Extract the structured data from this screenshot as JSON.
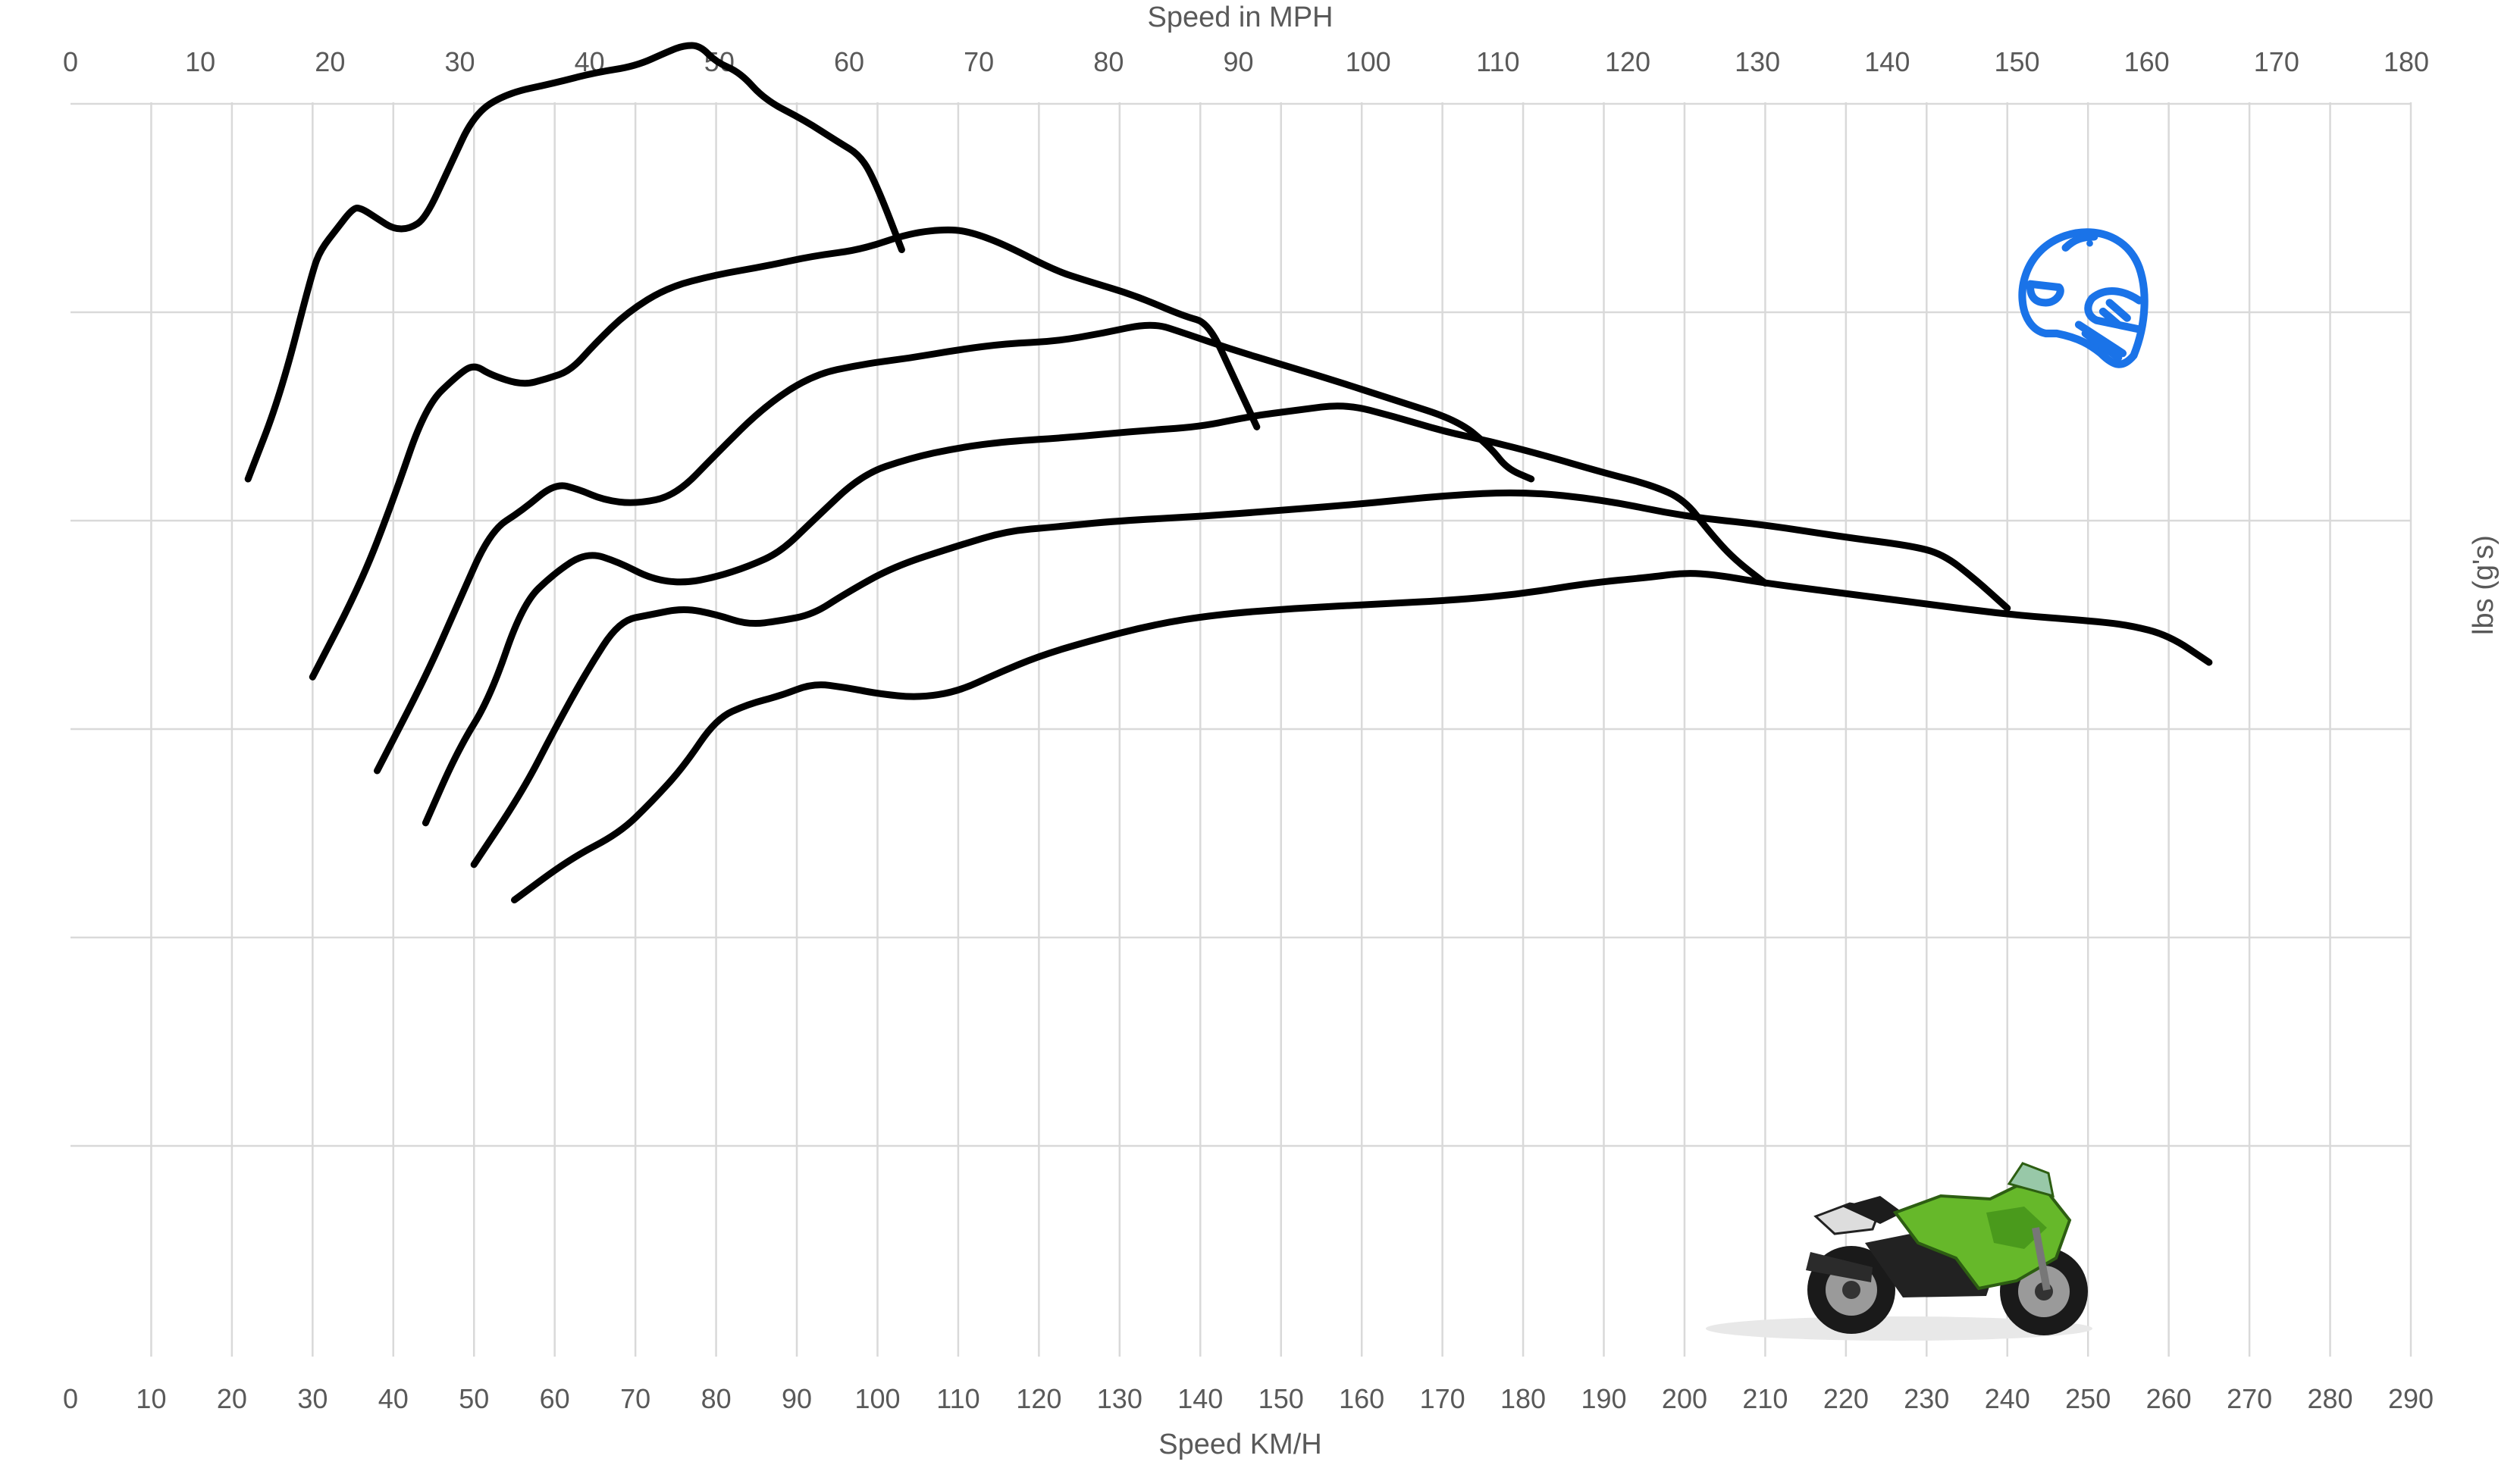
{
  "chart_data": {
    "type": "line",
    "title": "",
    "top_axis": {
      "label": "Speed in MPH",
      "ticks": [
        "0",
        "10",
        "20",
        "30",
        "40",
        "50",
        "60",
        "70",
        "80",
        "90",
        "100",
        "110",
        "120",
        "130",
        "140",
        "150",
        "160",
        "170",
        "180"
      ],
      "range": [
        0,
        180
      ]
    },
    "bottom_axis": {
      "label": "Speed KM/H",
      "ticks": [
        "0",
        "10",
        "20",
        "30",
        "40",
        "50",
        "60",
        "70",
        "80",
        "90",
        "100",
        "110",
        "120",
        "130",
        "140",
        "150",
        "160",
        "170",
        "180",
        "190",
        "200",
        "210",
        "220",
        "230",
        "240",
        "250",
        "260",
        "270",
        "280",
        "290"
      ],
      "range": [
        0,
        290
      ]
    },
    "y_axis": {
      "label": "lbs (g's)",
      "ticks": [],
      "range": [
        0,
        5.2
      ],
      "gridlines": [
        0,
        1,
        2,
        3,
        4,
        5
      ],
      "side": "right"
    },
    "grid": true,
    "legend": "none",
    "line_color": "#000000",
    "series": [
      {
        "x": [
          22,
          26,
          30,
          31,
          33,
          35,
          36,
          38,
          40,
          42,
          44,
          47,
          50,
          54,
          60,
          65,
          70,
          74,
          76,
          78,
          80,
          83,
          86,
          91,
          95,
          98,
          100,
          103
        ],
        "y": [
          3.2,
          3.6,
          4.2,
          4.3,
          4.4,
          4.5,
          4.5,
          4.45,
          4.4,
          4.4,
          4.45,
          4.7,
          4.95,
          5.05,
          5.1,
          5.15,
          5.18,
          5.25,
          5.28,
          5.28,
          5.2,
          5.15,
          5.02,
          4.92,
          4.82,
          4.75,
          4.6,
          4.3
        ]
      },
      {
        "x": [
          30,
          36,
          40,
          44,
          48,
          50,
          52,
          56,
          59,
          62,
          65,
          69,
          74,
          80,
          86,
          92,
          98,
          104,
          109,
          112,
          116,
          122,
          126,
          132,
          138,
          141,
          144,
          147
        ],
        "y": [
          2.25,
          2.7,
          3.1,
          3.55,
          3.7,
          3.75,
          3.7,
          3.65,
          3.68,
          3.72,
          3.85,
          4.0,
          4.12,
          4.18,
          4.22,
          4.27,
          4.3,
          4.38,
          4.4,
          4.38,
          4.32,
          4.2,
          4.15,
          4.08,
          3.98,
          3.95,
          3.7,
          3.45
        ]
      },
      {
        "x": [
          38,
          44,
          48,
          52,
          56,
          60,
          63,
          66,
          70,
          75,
          80,
          86,
          92,
          98,
          104,
          110,
          116,
          122,
          128,
          134,
          138,
          144,
          150,
          156,
          164,
          172,
          176,
          178,
          181
        ],
        "y": [
          1.8,
          2.25,
          2.6,
          2.95,
          3.05,
          3.18,
          3.15,
          3.1,
          3.08,
          3.12,
          3.32,
          3.55,
          3.7,
          3.75,
          3.78,
          3.82,
          3.85,
          3.86,
          3.9,
          3.95,
          3.9,
          3.82,
          3.75,
          3.68,
          3.58,
          3.48,
          3.35,
          3.25,
          3.2
        ]
      },
      {
        "x": [
          44,
          48,
          52,
          56,
          60,
          64,
          68,
          72,
          76,
          80,
          84,
          88,
          92,
          98,
          104,
          110,
          116,
          124,
          132,
          140,
          146,
          152,
          158,
          164,
          170,
          176,
          182,
          190,
          196,
          200,
          203,
          206,
          210
        ],
        "y": [
          1.55,
          1.9,
          2.15,
          2.6,
          2.75,
          2.85,
          2.8,
          2.72,
          2.7,
          2.73,
          2.78,
          2.85,
          3.0,
          3.22,
          3.3,
          3.35,
          3.38,
          3.4,
          3.43,
          3.45,
          3.5,
          3.53,
          3.56,
          3.5,
          3.43,
          3.38,
          3.32,
          3.23,
          3.17,
          3.1,
          2.95,
          2.82,
          2.7
        ]
      },
      {
        "x": [
          50,
          56,
          60,
          64,
          68,
          72,
          76,
          80,
          84,
          88,
          92,
          96,
          102,
          110,
          116,
          122,
          130,
          140,
          150,
          160,
          170,
          180,
          190,
          200,
          210,
          220,
          228,
          232,
          236,
          240
        ],
        "y": [
          1.35,
          1.7,
          2.0,
          2.28,
          2.52,
          2.55,
          2.58,
          2.55,
          2.5,
          2.52,
          2.55,
          2.65,
          2.78,
          2.88,
          2.95,
          2.97,
          3.0,
          3.02,
          3.05,
          3.08,
          3.12,
          3.14,
          3.1,
          3.02,
          2.98,
          2.92,
          2.88,
          2.84,
          2.72,
          2.58
        ]
      },
      {
        "x": [
          55,
          62,
          68,
          72,
          76,
          80,
          84,
          88,
          92,
          96,
          100,
          105,
          110,
          115,
          120,
          126,
          134,
          142,
          152,
          162,
          172,
          180,
          188,
          196,
          200,
          204,
          210,
          220,
          230,
          240,
          250,
          255,
          260,
          265
        ],
        "y": [
          1.18,
          1.38,
          1.5,
          1.65,
          1.82,
          2.05,
          2.12,
          2.16,
          2.22,
          2.2,
          2.17,
          2.15,
          2.18,
          2.27,
          2.35,
          2.42,
          2.5,
          2.55,
          2.58,
          2.6,
          2.62,
          2.65,
          2.7,
          2.73,
          2.75,
          2.74,
          2.7,
          2.65,
          2.6,
          2.55,
          2.52,
          2.5,
          2.45,
          2.32
        ]
      }
    ],
    "decorations": [
      "motorcycle-helmet-icon",
      "green-sport-motorcycle"
    ],
    "icon_color": "#1a73e8"
  }
}
